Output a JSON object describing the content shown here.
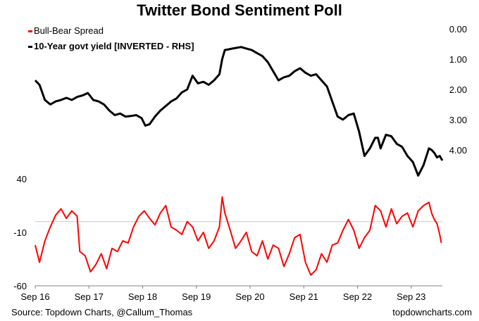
{
  "chart_data": {
    "type": "line",
    "title": "Twitter Bond Sentiment Poll",
    "x_ticks": [
      "Sep 16",
      "Sep 17",
      "Sep 18",
      "Sep 19",
      "Sep 20",
      "Sep 21",
      "Sep 22",
      "Sep 23"
    ],
    "x_tick_years": [
      2016.67,
      2017.67,
      2018.67,
      2019.67,
      2020.67,
      2021.67,
      2022.67,
      2023.67
    ],
    "xlim": [
      2016.67,
      2024.25
    ],
    "left_axis": {
      "ticks": [
        "40",
        "-10",
        "-60"
      ],
      "tick_values": [
        40,
        -10,
        -60
      ],
      "ylim": [
        -60,
        40
      ]
    },
    "right_axis": {
      "ticks": [
        "0.00",
        "1.00",
        "2.00",
        "3.00",
        "4.00"
      ],
      "tick_values": [
        0,
        1,
        2,
        3,
        4
      ],
      "ylim": [
        0,
        4.7
      ],
      "inverted": true
    },
    "series": [
      {
        "name": "Bull-Bear Spread",
        "color": "#ff0000",
        "axis": "left",
        "points": [
          [
            2016.67,
            -22
          ],
          [
            2016.75,
            -38
          ],
          [
            2016.85,
            -18
          ],
          [
            2016.95,
            -5
          ],
          [
            2017.05,
            6
          ],
          [
            2017.15,
            12
          ],
          [
            2017.25,
            3
          ],
          [
            2017.35,
            10
          ],
          [
            2017.45,
            5
          ],
          [
            2017.5,
            -28
          ],
          [
            2017.6,
            -32
          ],
          [
            2017.7,
            -47
          ],
          [
            2017.8,
            -40
          ],
          [
            2017.9,
            -30
          ],
          [
            2018.0,
            -44
          ],
          [
            2018.1,
            -25
          ],
          [
            2018.2,
            -28
          ],
          [
            2018.3,
            -18
          ],
          [
            2018.4,
            -20
          ],
          [
            2018.5,
            -5
          ],
          [
            2018.6,
            5
          ],
          [
            2018.7,
            10
          ],
          [
            2018.8,
            3
          ],
          [
            2018.9,
            -3
          ],
          [
            2019.0,
            8
          ],
          [
            2019.1,
            15
          ],
          [
            2019.2,
            -5
          ],
          [
            2019.3,
            -8
          ],
          [
            2019.4,
            -12
          ],
          [
            2019.5,
            0
          ],
          [
            2019.6,
            -5
          ],
          [
            2019.7,
            -18
          ],
          [
            2019.8,
            -10
          ],
          [
            2019.9,
            -25
          ],
          [
            2020.0,
            -18
          ],
          [
            2020.1,
            -5
          ],
          [
            2020.15,
            23
          ],
          [
            2020.2,
            8
          ],
          [
            2020.3,
            -8
          ],
          [
            2020.4,
            -25
          ],
          [
            2020.5,
            -18
          ],
          [
            2020.6,
            -10
          ],
          [
            2020.7,
            -28
          ],
          [
            2020.8,
            -32
          ],
          [
            2020.9,
            -18
          ],
          [
            2021.0,
            -35
          ],
          [
            2021.1,
            -22
          ],
          [
            2021.2,
            -25
          ],
          [
            2021.3,
            -42
          ],
          [
            2021.4,
            -30
          ],
          [
            2021.5,
            -15
          ],
          [
            2021.6,
            -12
          ],
          [
            2021.7,
            -38
          ],
          [
            2021.8,
            -50
          ],
          [
            2021.9,
            -45
          ],
          [
            2022.0,
            -30
          ],
          [
            2022.1,
            -38
          ],
          [
            2022.2,
            -22
          ],
          [
            2022.3,
            -20
          ],
          [
            2022.4,
            -8
          ],
          [
            2022.5,
            2
          ],
          [
            2022.6,
            -8
          ],
          [
            2022.7,
            -25
          ],
          [
            2022.8,
            -15
          ],
          [
            2022.9,
            -8
          ],
          [
            2023.0,
            15
          ],
          [
            2023.1,
            10
          ],
          [
            2023.2,
            -5
          ],
          [
            2023.3,
            12
          ],
          [
            2023.4,
            -2
          ],
          [
            2023.5,
            5
          ],
          [
            2023.6,
            8
          ],
          [
            2023.7,
            -5
          ],
          [
            2023.8,
            10
          ],
          [
            2023.9,
            15
          ],
          [
            2024.0,
            18
          ],
          [
            2024.05,
            8
          ],
          [
            2024.1,
            2
          ],
          [
            2024.15,
            -2
          ],
          [
            2024.2,
            -12
          ],
          [
            2024.23,
            -20
          ]
        ]
      },
      {
        "name": "10-Year govt yield [INVERTED - RHS]",
        "color": "#000000",
        "axis": "right",
        "points": [
          [
            2016.67,
            1.7
          ],
          [
            2016.75,
            1.85
          ],
          [
            2016.85,
            2.35
          ],
          [
            2016.95,
            2.5
          ],
          [
            2017.05,
            2.4
          ],
          [
            2017.15,
            2.35
          ],
          [
            2017.25,
            2.28
          ],
          [
            2017.35,
            2.35
          ],
          [
            2017.45,
            2.25
          ],
          [
            2017.55,
            2.2
          ],
          [
            2017.65,
            2.12
          ],
          [
            2017.75,
            2.35
          ],
          [
            2017.85,
            2.4
          ],
          [
            2017.95,
            2.5
          ],
          [
            2018.05,
            2.7
          ],
          [
            2018.15,
            2.85
          ],
          [
            2018.25,
            2.8
          ],
          [
            2018.35,
            2.9
          ],
          [
            2018.45,
            2.88
          ],
          [
            2018.55,
            2.85
          ],
          [
            2018.65,
            2.95
          ],
          [
            2018.72,
            3.2
          ],
          [
            2018.8,
            3.15
          ],
          [
            2018.9,
            2.9
          ],
          [
            2019.0,
            2.7
          ],
          [
            2019.1,
            2.55
          ],
          [
            2019.2,
            2.4
          ],
          [
            2019.3,
            2.3
          ],
          [
            2019.4,
            2.1
          ],
          [
            2019.5,
            2.0
          ],
          [
            2019.6,
            1.55
          ],
          [
            2019.7,
            1.8
          ],
          [
            2019.8,
            1.75
          ],
          [
            2019.9,
            1.85
          ],
          [
            2020.0,
            1.7
          ],
          [
            2020.1,
            1.5
          ],
          [
            2020.15,
            1.0
          ],
          [
            2020.2,
            0.7
          ],
          [
            2020.35,
            0.65
          ],
          [
            2020.5,
            0.6
          ],
          [
            2020.6,
            0.65
          ],
          [
            2020.7,
            0.7
          ],
          [
            2020.8,
            0.8
          ],
          [
            2020.9,
            0.9
          ],
          [
            2021.0,
            1.1
          ],
          [
            2021.1,
            1.4
          ],
          [
            2021.2,
            1.7
          ],
          [
            2021.3,
            1.6
          ],
          [
            2021.4,
            1.55
          ],
          [
            2021.5,
            1.4
          ],
          [
            2021.6,
            1.3
          ],
          [
            2021.7,
            1.45
          ],
          [
            2021.8,
            1.55
          ],
          [
            2021.9,
            1.5
          ],
          [
            2022.0,
            1.7
          ],
          [
            2022.1,
            1.9
          ],
          [
            2022.2,
            2.4
          ],
          [
            2022.3,
            2.9
          ],
          [
            2022.4,
            3.0
          ],
          [
            2022.5,
            2.85
          ],
          [
            2022.6,
            2.8
          ],
          [
            2022.7,
            3.4
          ],
          [
            2022.8,
            4.2
          ],
          [
            2022.9,
            3.95
          ],
          [
            2023.0,
            3.6
          ],
          [
            2023.05,
            3.6
          ],
          [
            2023.1,
            3.95
          ],
          [
            2023.2,
            3.5
          ],
          [
            2023.3,
            3.55
          ],
          [
            2023.4,
            3.8
          ],
          [
            2023.5,
            3.9
          ],
          [
            2023.6,
            4.2
          ],
          [
            2023.7,
            4.4
          ],
          [
            2023.8,
            4.85
          ],
          [
            2023.9,
            4.5
          ],
          [
            2024.0,
            3.95
          ],
          [
            2024.05,
            4.0
          ],
          [
            2024.1,
            4.1
          ],
          [
            2024.15,
            4.25
          ],
          [
            2024.2,
            4.2
          ],
          [
            2024.25,
            4.35
          ]
        ]
      }
    ],
    "reference_line": {
      "axis": "left",
      "value": 0
    }
  },
  "legend": {
    "spread_label": "Bull-Bear Spread",
    "yield_label": "10-Year govt yield [INVERTED - RHS]"
  },
  "footer": {
    "source": "Source: Topdown Charts, @Callum_Thomas",
    "site": "topdowncharts.com"
  }
}
